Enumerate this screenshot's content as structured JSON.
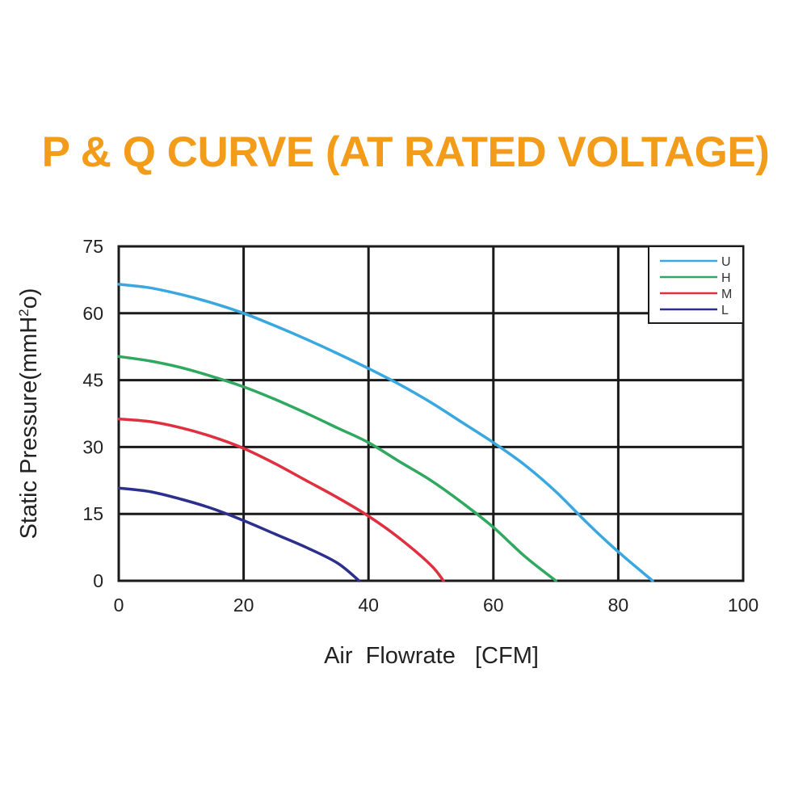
{
  "colors": {
    "title": "#f39c1a",
    "grid": "#1a1a1a",
    "frame": "#1a1a1a",
    "text": "#222222"
  },
  "chart_data": {
    "type": "line",
    "title": "P & Q CURVE (AT RATED VOLTAGE)",
    "xlabel": "Air  Flowrate   [CFM]",
    "ylabel_main": "Static Pressure(mmH",
    "ylabel_sup": "2",
    "ylabel_end": "o)",
    "xlim": [
      0,
      100
    ],
    "ylim": [
      0,
      75
    ],
    "xticks": [
      0,
      20,
      40,
      60,
      80,
      100
    ],
    "yticks": [
      0,
      15,
      30,
      45,
      60,
      75
    ],
    "grid": true,
    "legend_position": "top-right",
    "series": [
      {
        "name": "U",
        "color": "#3aa8e0",
        "x": [
          0,
          5,
          10,
          15,
          20,
          25,
          30,
          35,
          40,
          45,
          50,
          55,
          60,
          65,
          70,
          75,
          80,
          85.5
        ],
        "y": [
          66.5,
          65.7,
          64.2,
          62.3,
          60,
          57.2,
          54.2,
          51,
          47.6,
          44,
          40,
          35.5,
          31,
          26,
          20,
          13,
          6.5,
          0
        ]
      },
      {
        "name": "H",
        "color": "#2fa860",
        "x": [
          0,
          5,
          10,
          15,
          20,
          25,
          30,
          35,
          40,
          45,
          50,
          55,
          60,
          65,
          70
        ],
        "y": [
          50.3,
          49.3,
          47.8,
          45.8,
          43.5,
          40.7,
          37.6,
          34.3,
          31,
          26.7,
          22.5,
          17.5,
          12,
          5.5,
          0
        ]
      },
      {
        "name": "M",
        "color": "#e03040",
        "x": [
          0,
          5,
          10,
          15,
          20,
          25,
          30,
          35,
          40,
          45,
          50,
          52
        ],
        "y": [
          36.3,
          35.7,
          34.3,
          32.3,
          29.7,
          26.3,
          22.5,
          18.7,
          14.5,
          9.5,
          3.5,
          0
        ]
      },
      {
        "name": "L",
        "color": "#2c2f8c",
        "x": [
          0,
          5,
          10,
          15,
          20,
          25,
          30,
          35,
          38.5
        ],
        "y": [
          20.8,
          20,
          18.3,
          16.2,
          13.5,
          10.5,
          7.5,
          4,
          0
        ]
      }
    ]
  }
}
